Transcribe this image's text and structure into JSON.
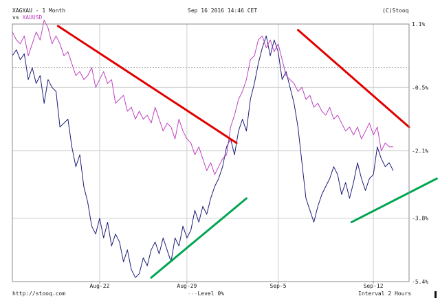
{
  "header": {
    "symbol": "XAGXAU - 1 Month",
    "date": "Sep 16 2016 14:46 CET",
    "brand": "(C)Stooq",
    "vs_prefix": "vs",
    "vs_symbol": "XAUUSD"
  },
  "footer": {
    "url": "http://stooq.com",
    "level_label": "Level 0%",
    "interval": "Interval 2 Hours"
  },
  "colors": {
    "primary": "#1c1c7a",
    "compare": "#c040c0",
    "trend_down": "#e00000",
    "trend_up": "#00a550",
    "grid": "#cccccc",
    "frame": "#8a8a8a"
  },
  "chart_data": {
    "type": "line",
    "xlabel": "",
    "ylabel": "",
    "x_ticks": [
      "Aug-22",
      "Aug-29",
      "Sep-5",
      "Sep-12"
    ],
    "y_ticks": [
      "1.1%",
      "-0.5%",
      "-2.1%",
      "-3.8%",
      "-5.4%"
    ],
    "y_tick_values": [
      1.1,
      -0.5,
      -2.1,
      -3.8,
      -5.4
    ],
    "ylim": [
      -5.4,
      1.1
    ],
    "x_range": [
      0,
      100
    ],
    "grid": true,
    "level_line": 0,
    "series": [
      {
        "name": "XAGXAU",
        "color": "#1c1c7a",
        "points": [
          [
            0,
            0.3
          ],
          [
            1,
            0.45
          ],
          [
            2,
            0.2
          ],
          [
            3,
            0.35
          ],
          [
            4,
            -0.3
          ],
          [
            5,
            0.0
          ],
          [
            6,
            -0.4
          ],
          [
            7,
            -0.2
          ],
          [
            8,
            -0.9
          ],
          [
            9,
            -0.3
          ],
          [
            10,
            -0.5
          ],
          [
            11,
            -0.6
          ],
          [
            12,
            -1.5
          ],
          [
            13,
            -1.4
          ],
          [
            14,
            -1.3
          ],
          [
            15,
            -2.0
          ],
          [
            16,
            -2.5
          ],
          [
            17,
            -2.2
          ],
          [
            18,
            -3.0
          ],
          [
            19,
            -3.4
          ],
          [
            20,
            -4.0
          ],
          [
            21,
            -4.2
          ],
          [
            22,
            -3.8
          ],
          [
            23,
            -4.3
          ],
          [
            24,
            -3.9
          ],
          [
            25,
            -4.5
          ],
          [
            26,
            -4.2
          ],
          [
            27,
            -4.4
          ],
          [
            28,
            -4.9
          ],
          [
            29,
            -4.6
          ],
          [
            30,
            -5.1
          ],
          [
            31,
            -5.3
          ],
          [
            32,
            -5.2
          ],
          [
            33,
            -4.8
          ],
          [
            34,
            -5.0
          ],
          [
            35,
            -4.6
          ],
          [
            36,
            -4.4
          ],
          [
            37,
            -4.7
          ],
          [
            38,
            -4.3
          ],
          [
            39,
            -4.6
          ],
          [
            40,
            -4.9
          ],
          [
            41,
            -4.3
          ],
          [
            42,
            -4.5
          ],
          [
            43,
            -4.0
          ],
          [
            44,
            -4.3
          ],
          [
            45,
            -4.1
          ],
          [
            46,
            -3.6
          ],
          [
            47,
            -3.9
          ],
          [
            48,
            -3.5
          ],
          [
            49,
            -3.7
          ],
          [
            50,
            -3.3
          ],
          [
            51,
            -3.0
          ],
          [
            52,
            -2.8
          ],
          [
            53,
            -2.5
          ],
          [
            54,
            -2.0
          ],
          [
            55,
            -1.8
          ],
          [
            56,
            -2.2
          ],
          [
            57,
            -1.6
          ],
          [
            58,
            -1.3
          ],
          [
            59,
            -1.6
          ],
          [
            60,
            -0.8
          ],
          [
            61,
            -0.4
          ],
          [
            62,
            0.1
          ],
          [
            63,
            0.5
          ],
          [
            64,
            0.8
          ],
          [
            65,
            0.3
          ],
          [
            66,
            0.7
          ],
          [
            67,
            0.4
          ],
          [
            68,
            -0.3
          ],
          [
            69,
            -0.1
          ],
          [
            70,
            -0.5
          ],
          [
            71,
            -0.9
          ],
          [
            72,
            -1.5
          ],
          [
            73,
            -2.4
          ],
          [
            74,
            -3.3
          ],
          [
            75,
            -3.6
          ],
          [
            76,
            -3.9
          ],
          [
            77,
            -3.5
          ],
          [
            78,
            -3.2
          ],
          [
            79,
            -3.0
          ],
          [
            80,
            -2.8
          ],
          [
            81,
            -2.5
          ],
          [
            82,
            -2.7
          ],
          [
            83,
            -3.2
          ],
          [
            84,
            -2.9
          ],
          [
            85,
            -3.3
          ],
          [
            86,
            -2.9
          ],
          [
            87,
            -2.4
          ],
          [
            88,
            -2.8
          ],
          [
            89,
            -3.1
          ],
          [
            90,
            -2.8
          ],
          [
            91,
            -2.7
          ],
          [
            92,
            -2.0
          ],
          [
            93,
            -2.3
          ],
          [
            94,
            -2.5
          ],
          [
            95,
            -2.4
          ],
          [
            96,
            -2.6
          ]
        ]
      },
      {
        "name": "XAUUSD",
        "color": "#c040c0",
        "points": [
          [
            0,
            0.9
          ],
          [
            1,
            0.7
          ],
          [
            2,
            0.6
          ],
          [
            3,
            0.8
          ],
          [
            4,
            0.3
          ],
          [
            5,
            0.6
          ],
          [
            6,
            0.9
          ],
          [
            7,
            0.7
          ],
          [
            8,
            1.2
          ],
          [
            9,
            1.0
          ],
          [
            10,
            0.6
          ],
          [
            11,
            0.8
          ],
          [
            12,
            0.6
          ],
          [
            13,
            0.3
          ],
          [
            14,
            0.4
          ],
          [
            15,
            0.1
          ],
          [
            16,
            -0.2
          ],
          [
            17,
            -0.1
          ],
          [
            18,
            -0.3
          ],
          [
            19,
            -0.2
          ],
          [
            20,
            0.0
          ],
          [
            21,
            -0.5
          ],
          [
            22,
            -0.3
          ],
          [
            23,
            -0.1
          ],
          [
            24,
            -0.4
          ],
          [
            25,
            -0.3
          ],
          [
            26,
            -0.9
          ],
          [
            27,
            -0.8
          ],
          [
            28,
            -0.7
          ],
          [
            29,
            -1.1
          ],
          [
            30,
            -1.0
          ],
          [
            31,
            -1.3
          ],
          [
            32,
            -1.1
          ],
          [
            33,
            -1.3
          ],
          [
            34,
            -1.2
          ],
          [
            35,
            -1.4
          ],
          [
            36,
            -1.0
          ],
          [
            37,
            -1.3
          ],
          [
            38,
            -1.6
          ],
          [
            39,
            -1.4
          ],
          [
            40,
            -1.5
          ],
          [
            41,
            -1.8
          ],
          [
            42,
            -1.3
          ],
          [
            43,
            -1.6
          ],
          [
            44,
            -1.8
          ],
          [
            45,
            -1.9
          ],
          [
            46,
            -2.2
          ],
          [
            47,
            -2.0
          ],
          [
            48,
            -2.3
          ],
          [
            49,
            -2.6
          ],
          [
            50,
            -2.4
          ],
          [
            51,
            -2.7
          ],
          [
            52,
            -2.5
          ],
          [
            53,
            -2.3
          ],
          [
            54,
            -2.2
          ],
          [
            55,
            -1.5
          ],
          [
            56,
            -1.2
          ],
          [
            57,
            -0.8
          ],
          [
            58,
            -0.6
          ],
          [
            59,
            -0.3
          ],
          [
            60,
            0.2
          ],
          [
            61,
            0.3
          ],
          [
            62,
            0.7
          ],
          [
            63,
            0.8
          ],
          [
            64,
            0.5
          ],
          [
            65,
            0.7
          ],
          [
            66,
            0.4
          ],
          [
            67,
            0.6
          ],
          [
            68,
            0.2
          ],
          [
            69,
            -0.2
          ],
          [
            70,
            -0.3
          ],
          [
            71,
            -0.4
          ],
          [
            72,
            -0.6
          ],
          [
            73,
            -0.5
          ],
          [
            74,
            -0.8
          ],
          [
            75,
            -0.7
          ],
          [
            76,
            -1.0
          ],
          [
            77,
            -0.9
          ],
          [
            78,
            -1.1
          ],
          [
            79,
            -1.2
          ],
          [
            80,
            -1.0
          ],
          [
            81,
            -1.3
          ],
          [
            82,
            -1.2
          ],
          [
            83,
            -1.4
          ],
          [
            84,
            -1.6
          ],
          [
            85,
            -1.5
          ],
          [
            86,
            -1.7
          ],
          [
            87,
            -1.5
          ],
          [
            88,
            -1.8
          ],
          [
            89,
            -1.6
          ],
          [
            90,
            -1.4
          ],
          [
            91,
            -1.7
          ],
          [
            92,
            -1.5
          ],
          [
            93,
            -2.1
          ],
          [
            94,
            -1.9
          ],
          [
            95,
            -2.0
          ],
          [
            96,
            -2.0
          ]
        ]
      }
    ],
    "trendlines": [
      {
        "kind": "down",
        "color": "#e00000",
        "from": [
          11.5,
          1.05
        ],
        "to": [
          56.5,
          -1.9
        ]
      },
      {
        "kind": "up",
        "color": "#00a550",
        "from": [
          35,
          -5.3
        ],
        "to": [
          59,
          -3.3
        ]
      },
      {
        "kind": "down",
        "color": "#e00000",
        "from": [
          72,
          0.95
        ],
        "to": [
          100,
          -1.5
        ]
      },
      {
        "kind": "up",
        "color": "#00a550",
        "from": [
          85.5,
          -3.9
        ],
        "to": [
          107,
          -2.8
        ]
      }
    ]
  }
}
